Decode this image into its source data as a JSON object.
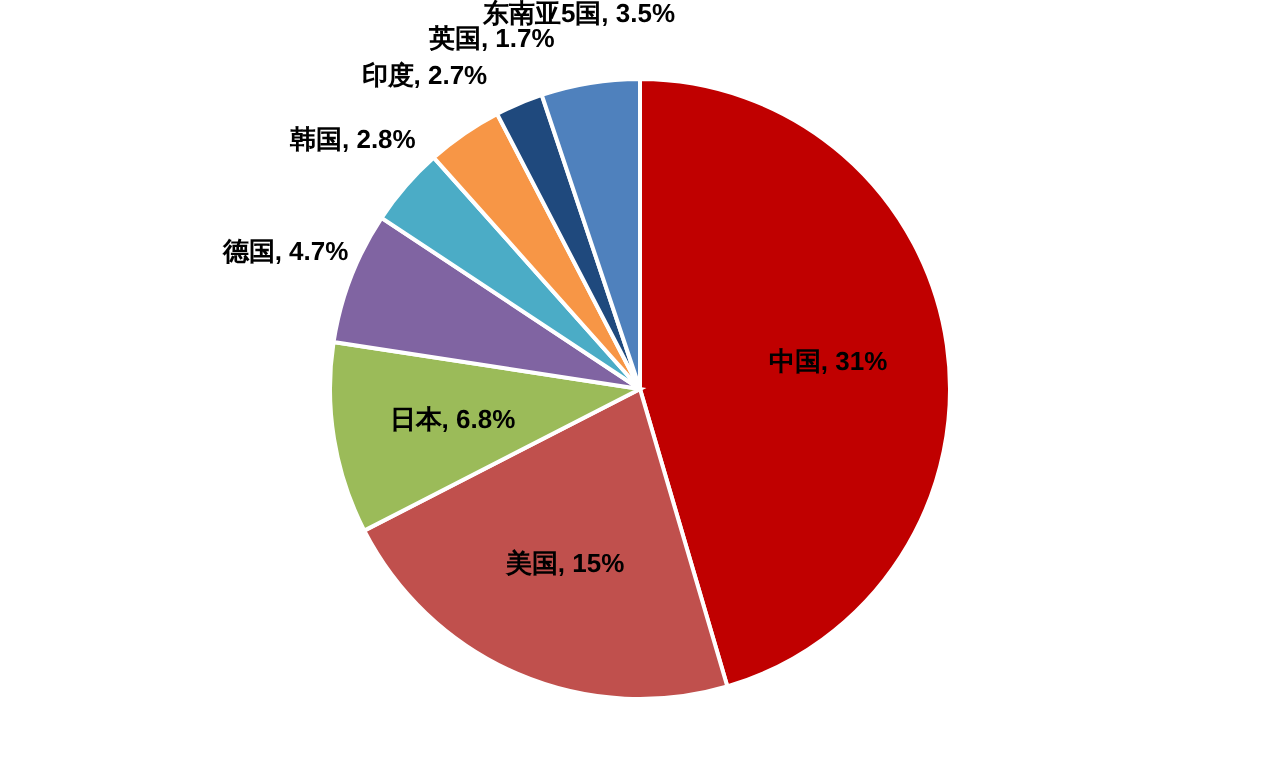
{
  "chart_data": {
    "type": "pie",
    "categories": [
      "中国",
      "美国",
      "日本",
      "德国",
      "韩国",
      "印度",
      "英国",
      "东南亚5国"
    ],
    "values": [
      31,
      15,
      6.8,
      4.7,
      2.8,
      2.7,
      1.7,
      3.5
    ],
    "value_labels": [
      "31%",
      "15%",
      "6.8%",
      "4.7%",
      "2.8%",
      "2.7%",
      "1.7%",
      "3.5%"
    ],
    "colors": [
      "#c00000",
      "#c0504d",
      "#9bbb59",
      "#8064a2",
      "#4bacc6",
      "#f79646",
      "#1f497d",
      "#4f81bd"
    ]
  }
}
